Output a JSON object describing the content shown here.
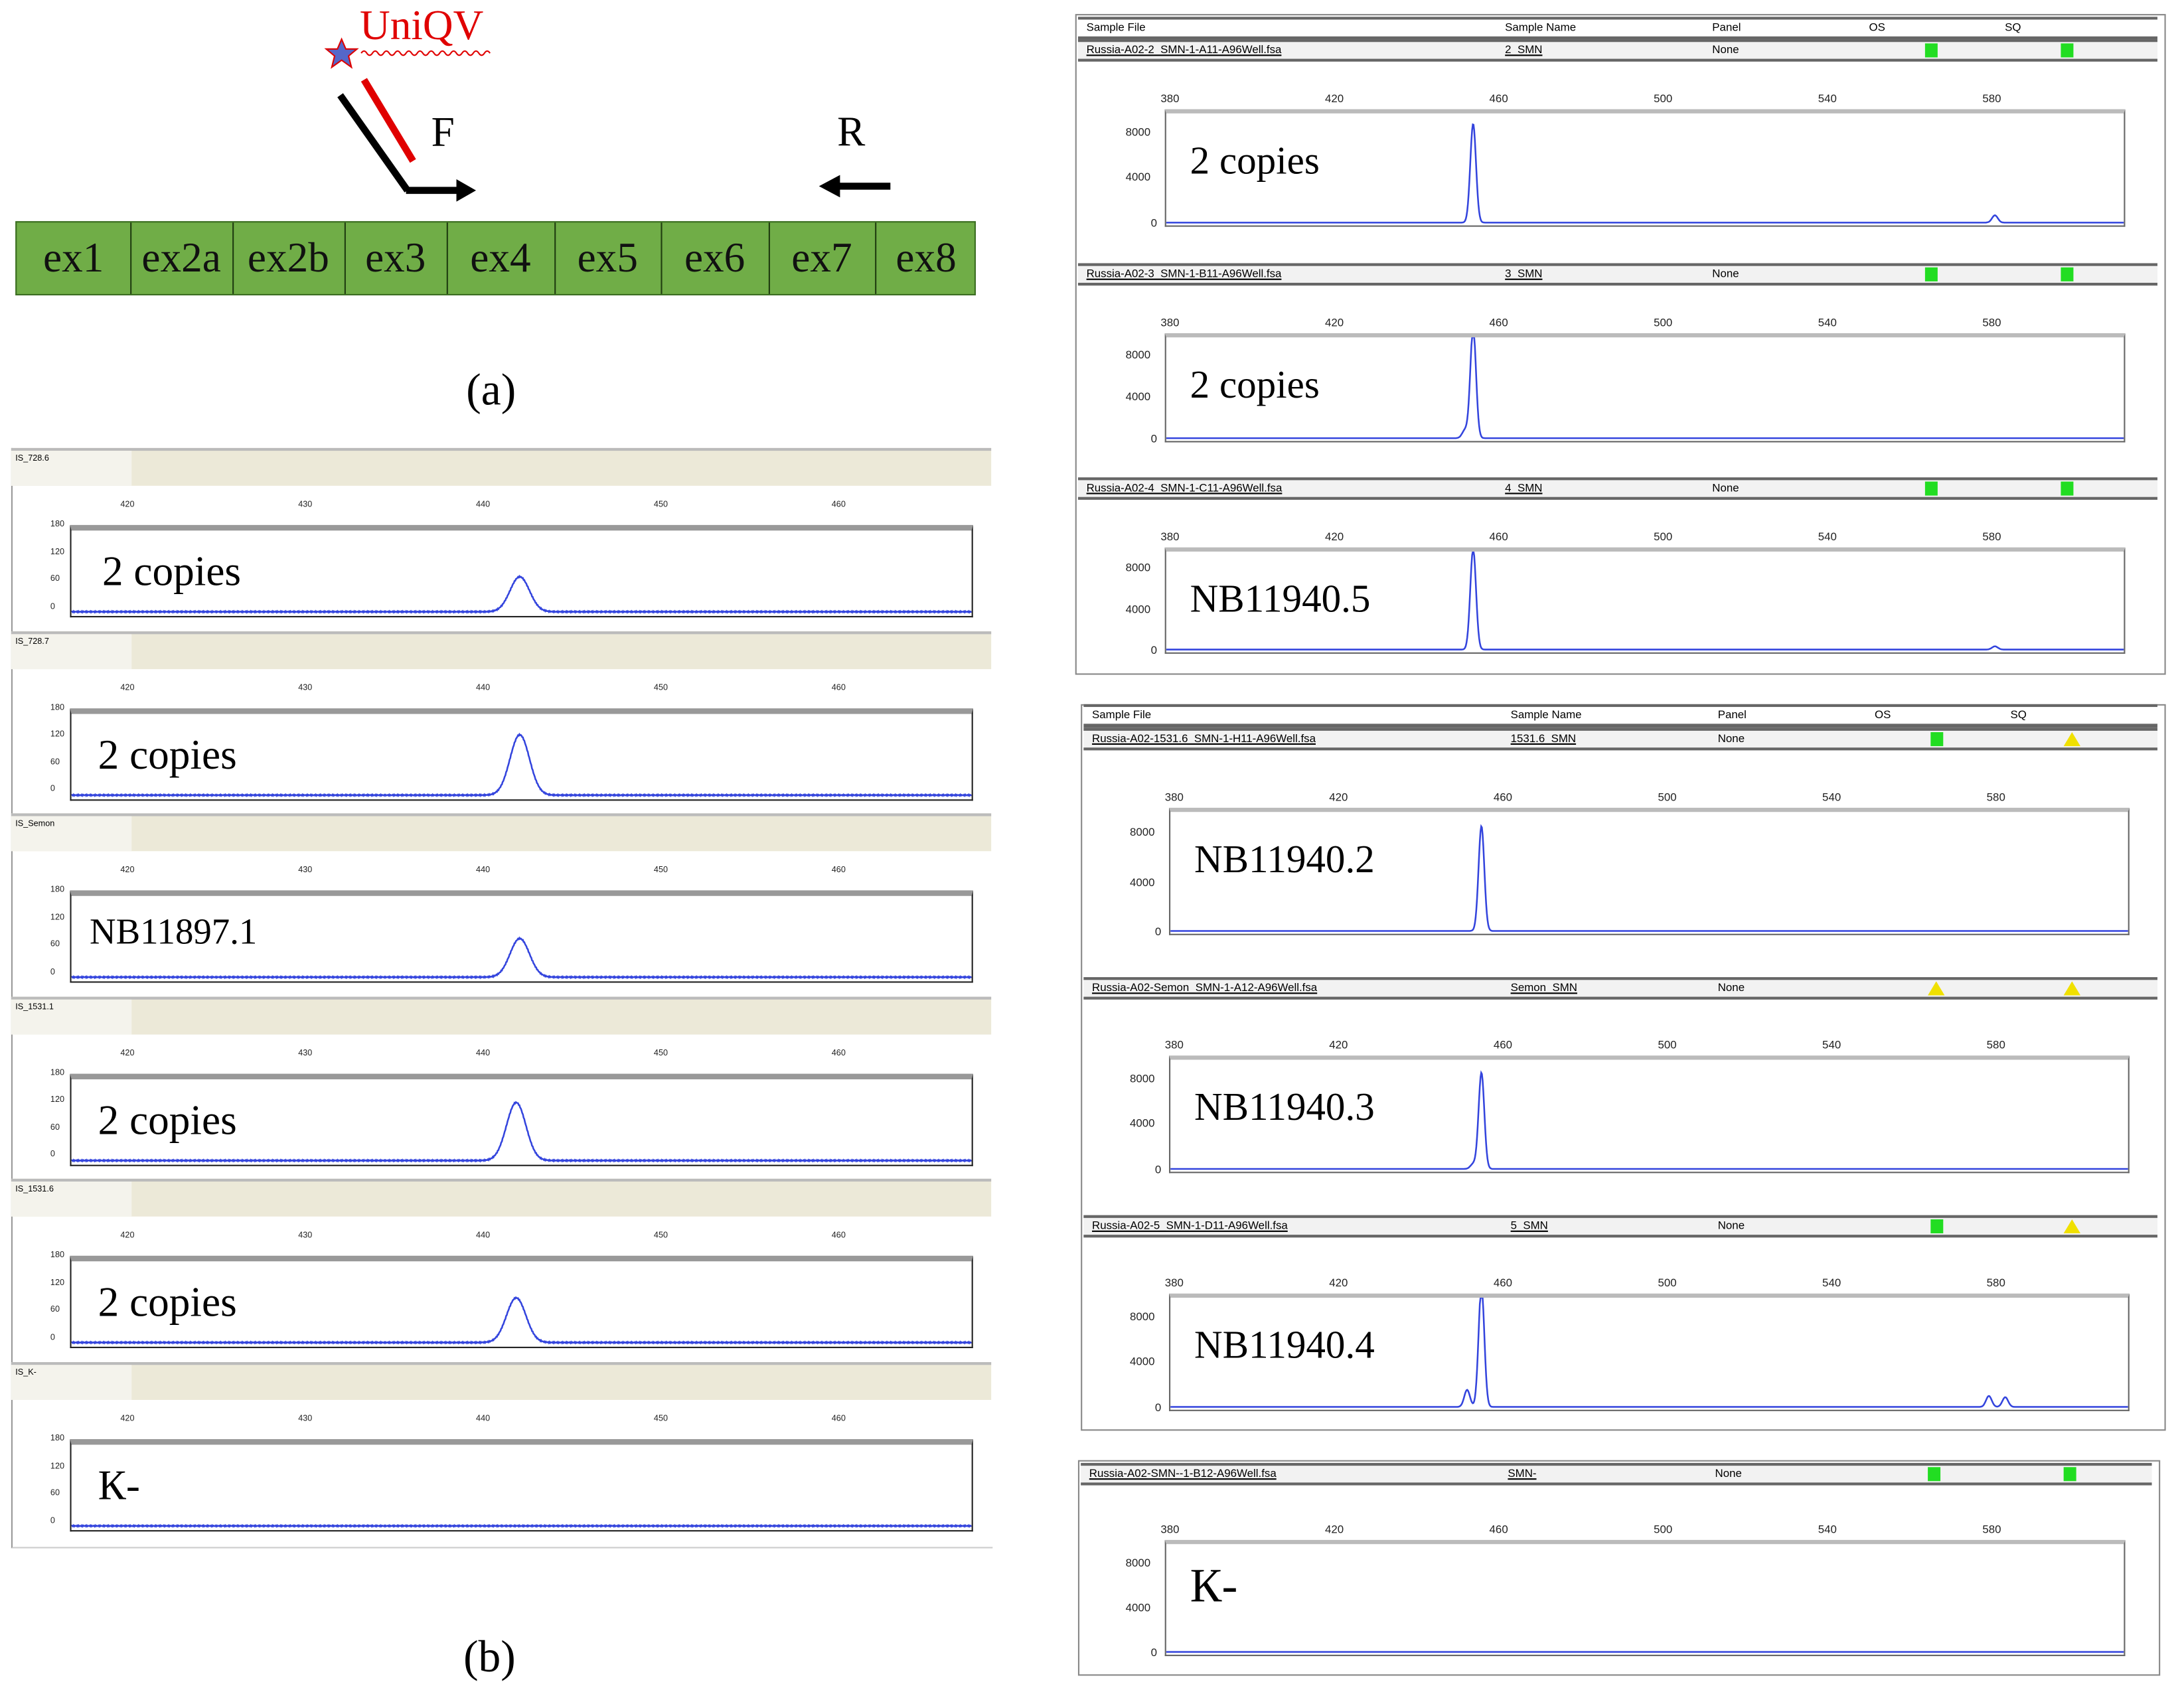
{
  "figure_a": {
    "label": "(a)",
    "exons": [
      "ex1",
      "ex2a",
      "ex2b",
      "ex3",
      "ex4",
      "ex5",
      "ex6",
      "ex7",
      "ex8"
    ],
    "probe_label": "UniQV",
    "forward_primer": "F",
    "reverse_primer": "R",
    "colors": {
      "exon_fill": "#70ad47",
      "probe": "#e00000",
      "primer": "#000000"
    }
  },
  "figure_b": {
    "label": "(b)"
  },
  "chart_data": [
    {
      "type": "line",
      "group": "left",
      "ylim": [
        0,
        180
      ],
      "y_ticks": [
        "180",
        "120",
        "60",
        "0"
      ],
      "x_ticks": [
        "420",
        "430",
        "440",
        "450",
        "460"
      ],
      "xlim": [
        417,
        468
      ],
      "series_color": "#3344dd",
      "panels": [
        {
          "sample": "IS_728.6",
          "annotation": "2 copies",
          "peaks": [
            {
              "x": 442.4,
              "y": 87
            }
          ]
        },
        {
          "sample": "IS_728.7",
          "annotation": "2 copies",
          "peaks": [
            {
              "x": 442.4,
              "y": 150
            }
          ]
        },
        {
          "sample": "IS_Semon",
          "annotation": "NB11897.1",
          "peaks": [
            {
              "x": 442.4,
              "y": 96
            }
          ]
        },
        {
          "sample": "IS_1531.1",
          "annotation": "2 copies",
          "peaks": [
            {
              "x": 442.2,
              "y": 144
            }
          ]
        },
        {
          "sample": "IS_1531.6",
          "annotation": "2 copies",
          "peaks": [
            {
              "x": 442.2,
              "y": 111
            }
          ]
        },
        {
          "sample": "IS_K-",
          "annotation": "К-",
          "peaks": []
        }
      ]
    },
    {
      "type": "line",
      "group": "right",
      "ylim": [
        0,
        8000
      ],
      "y_ticks": [
        "8000",
        "4000",
        "0"
      ],
      "x_ticks": [
        "380",
        "420",
        "460",
        "500",
        "540",
        "580"
      ],
      "xlim": [
        378,
        612
      ],
      "series_color": "#3344dd",
      "columns": {
        "file": "Sample File",
        "name": "Sample Name",
        "panel": "Panel",
        "os": "OS",
        "sq": "SQ"
      },
      "panels": [
        {
          "file": "Russia-A02-2_SMN-1-A11-A96Well.fsa",
          "name": "2_SMN",
          "panel": "None",
          "os": "green",
          "sq": "green",
          "annotation": "2 copies",
          "peaks": [
            {
              "x": 453,
              "y": 8100
            },
            {
              "x": 580.5,
              "y": 600
            }
          ]
        },
        {
          "file": "Russia-A02-3_SMN-1-B11-A96Well.fsa",
          "name": "3_SMN",
          "panel": "None",
          "os": "green",
          "sq": "green",
          "annotation": "2 copies",
          "peaks": [
            {
              "x": 453,
              "y": 9800
            },
            {
              "x": 451,
              "y": 700
            }
          ]
        },
        {
          "file": "Russia-A02-4_SMN-1-C11-A96Well.fsa",
          "name": "4_SMN",
          "panel": "None",
          "os": "green",
          "sq": "green",
          "annotation": "NB11940.5",
          "peaks": [
            {
              "x": 453,
              "y": 9200
            },
            {
              "x": 580.5,
              "y": 300
            }
          ]
        },
        {
          "file": "Russia-A02-1531.6_SMN-1-H11-A96Well.fsa",
          "name": "1531.6_SMN",
          "panel": "None",
          "os": "green",
          "sq": "yellow",
          "annotation": "NB11940.2",
          "peaks": [
            {
              "x": 454,
              "y": 7900
            }
          ]
        },
        {
          "file": "Russia-A02-Semon_SMN-1-A12-A96Well.fsa",
          "name": "Semon_SMN",
          "panel": "None",
          "os": "yellow",
          "sq": "yellow",
          "annotation": "NB11940.3",
          "peaks": [
            {
              "x": 454,
              "y": 7900
            },
            {
              "x": 452,
              "y": 400
            }
          ]
        },
        {
          "file": "Russia-A02-5_SMN-1-D11-A96Well.fsa",
          "name": "5_SMN",
          "panel": "None",
          "os": "green",
          "sq": "yellow",
          "annotation": "NB11940.4",
          "peaks": [
            {
              "x": 454,
              "y": 9900
            },
            {
              "x": 450.5,
              "y": 1400
            },
            {
              "x": 578,
              "y": 900
            },
            {
              "x": 582,
              "y": 800
            }
          ]
        },
        {
          "file": "Russia-A02-SMN--1-B12-A96Well.fsa",
          "name": "SMN-",
          "panel": "None",
          "os": "green",
          "sq": "green",
          "annotation": "К-",
          "peaks": []
        }
      ]
    }
  ]
}
